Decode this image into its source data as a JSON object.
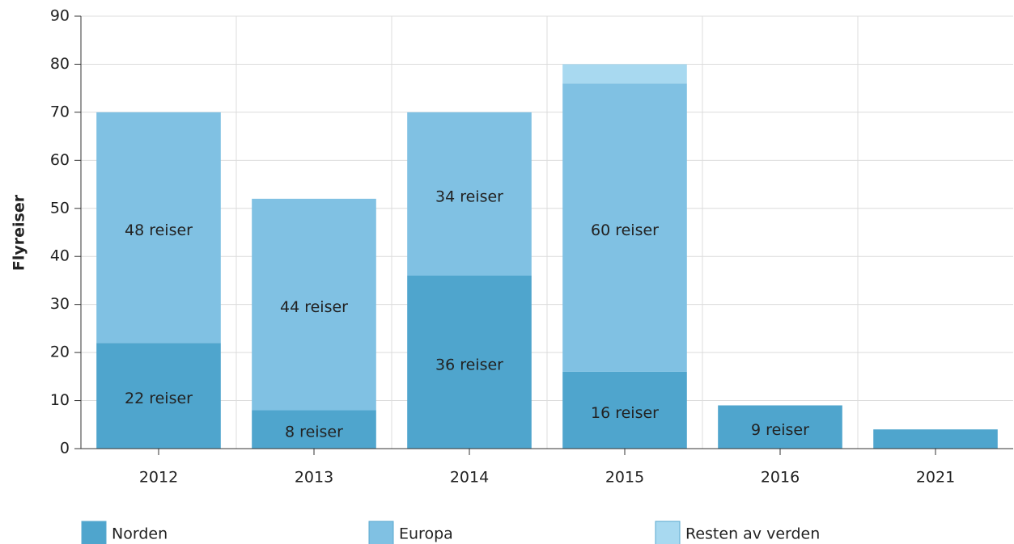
{
  "chart_data": {
    "type": "stacked_bar",
    "y_label": "Flyreiser",
    "categories": [
      "2012",
      "2013",
      "2014",
      "2015",
      "2016",
      "2021"
    ],
    "series": [
      {
        "name": "Norden",
        "color": "#4fa5cd",
        "values": [
          22,
          8,
          36,
          16,
          9,
          4
        ],
        "value_labels": [
          "22 reiser",
          "8 reiser",
          "36 reiser",
          "16 reiser",
          "9 reiser",
          null
        ]
      },
      {
        "name": "Europa",
        "color": "#80c1e3",
        "values": [
          48,
          44,
          34,
          60,
          null,
          null
        ],
        "value_labels": [
          "48 reiser",
          "44 reiser",
          "34 reiser",
          "60 reiser",
          null,
          null
        ]
      },
      {
        "name": "Resten av verden",
        "color": "#a8d9f0",
        "values": [
          null,
          null,
          null,
          4,
          null,
          null
        ]
      }
    ],
    "ylim": [
      0,
      90
    ],
    "yticks": [
      0,
      10,
      20,
      30,
      40,
      50,
      60,
      70,
      80,
      90
    ],
    "grid": true
  }
}
